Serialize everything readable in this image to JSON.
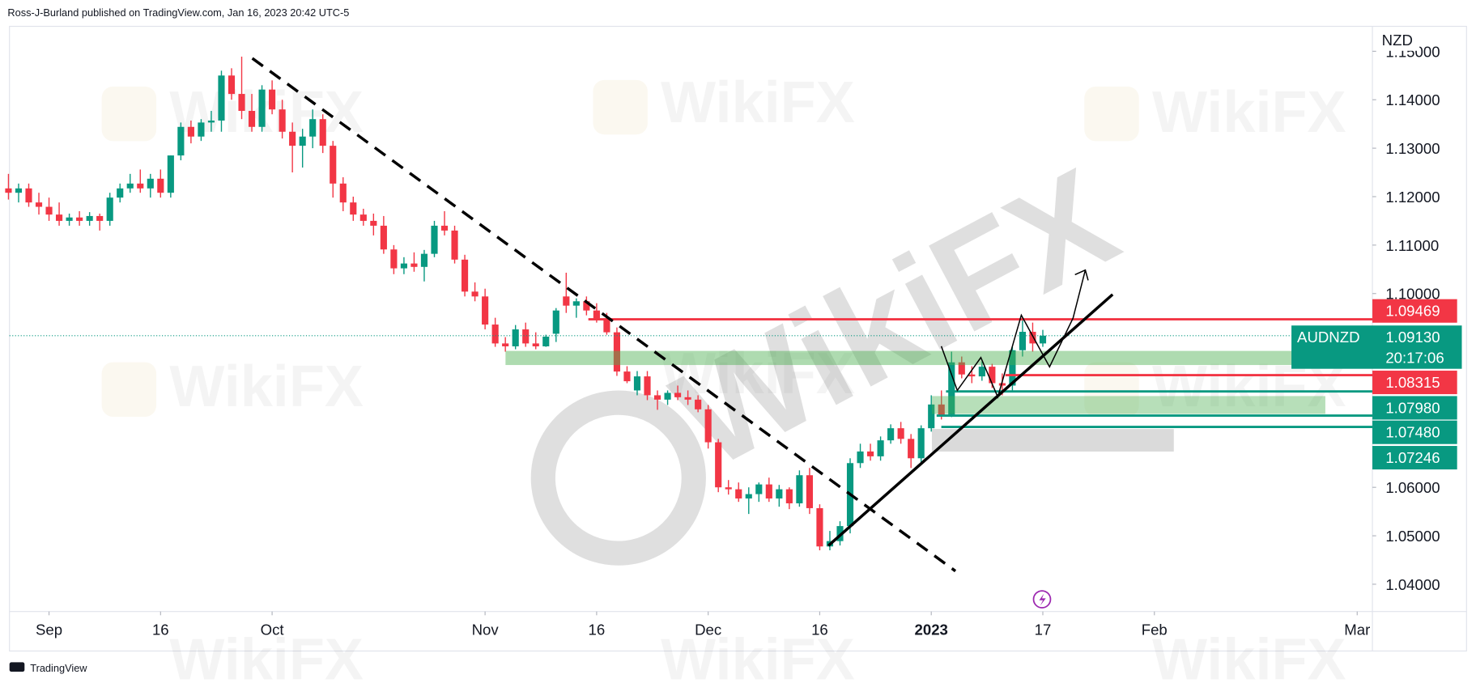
{
  "chart_data": {
    "type": "candlestick",
    "published": "Ross-J-Burland published on TradingView.com, Jan 16, 2023 20:42 UTC-5",
    "branding": "TradingView",
    "watermark": "WikiFX",
    "currency": "NZD",
    "symbol": "AUDNZD",
    "last_price": {
      "value": 1.0913,
      "label": "1.09130"
    },
    "countdown": "20:17:06",
    "up_color": "#089981",
    "down_color": "#f23645",
    "xlim": [
      0.1,
      134.5
    ],
    "ylim": [
      1.03437,
      1.15515
    ],
    "xticks": [
      {
        "value": 4,
        "label": "Sep"
      },
      {
        "value": 15,
        "label": "16"
      },
      {
        "value": 26,
        "label": "Oct"
      },
      {
        "value": 47,
        "label": "Nov"
      },
      {
        "value": 58,
        "label": "16"
      },
      {
        "value": 69,
        "label": "Dec"
      },
      {
        "value": 80,
        "label": "16"
      },
      {
        "value": 91,
        "label": "2023"
      },
      {
        "value": 102,
        "label": "17"
      },
      {
        "value": 113,
        "label": "Feb"
      },
      {
        "value": 133,
        "label": "Mar"
      }
    ],
    "yticks": [
      {
        "value": 1.04,
        "label": "1.04000"
      },
      {
        "value": 1.05,
        "label": "1.05000"
      },
      {
        "value": 1.06,
        "label": "1.06000"
      },
      {
        "value": 1.1,
        "label": "1.10000"
      },
      {
        "value": 1.11,
        "label": "1.11000"
      },
      {
        "value": 1.12,
        "label": "1.12000"
      },
      {
        "value": 1.13,
        "label": "1.13000"
      },
      {
        "value": 1.14,
        "label": "1.14000"
      },
      {
        "value": 1.15,
        "label": "1.15000"
      }
    ],
    "levels": [
      {
        "value": 1.09469,
        "label": "1.09469",
        "color": "#f23645"
      },
      {
        "value": 1.08315,
        "label": "1.08315",
        "color": "#f23645"
      },
      {
        "value": 1.0798,
        "label": "1.07980",
        "color": "#089981"
      },
      {
        "value": 1.0748,
        "label": "1.07480",
        "color": "#089981"
      },
      {
        "value": 1.07246,
        "label": "1.07246",
        "color": "#089981"
      }
    ],
    "open": [
      1.1217,
      1.1208,
      1.1217,
      1.1188,
      1.1179,
      1.1163,
      1.115,
      1.1157,
      1.115,
      1.116,
      1.115,
      1.1198,
      1.1217,
      1.1227,
      1.1217,
      1.1237,
      1.1208,
      1.1285,
      1.1344,
      1.1324,
      1.1353,
      1.1357,
      1.145,
      1.1412,
      1.1377,
      1.1344,
      1.1421,
      1.138,
      1.1334,
      1.1305,
      1.1324,
      1.136,
      1.1305,
      1.1227,
      1.1188,
      1.1163,
      1.115,
      1.114,
      1.1091,
      1.1052,
      1.1062,
      1.1055,
      1.1082,
      1.114,
      1.113,
      1.107,
      1.1004,
      1.0994,
      1.0936,
      1.0897,
      1.0891,
      1.0926,
      1.0897,
      1.0891,
      1.0917,
      1.0994,
      1.0975,
      1.0984,
      1.0965,
      1.0946,
      1.092,
      1.0839,
      1.08,
      1.0829,
      1.079,
      1.0781,
      1.0795,
      1.0786,
      1.0781,
      1.0761,
      1.0693,
      1.06,
      1.0596,
      1.0577,
      1.0586,
      1.0606,
      1.0577,
      1.0596,
      1.0567,
      1.0625,
      1.0557,
      1.0478,
      1.0489,
      1.052,
      1.065,
      1.0674,
      1.0664,
      1.0697,
      1.0722,
      1.07,
      1.066,
      1.0722,
      1.0771,
      1.075,
      1.0858,
      1.0833,
      1.0829,
      1.0849,
      1.0815,
      1.081,
      1.0883,
      1.0921,
      1.0897
    ],
    "high": [
      1.1247,
      1.1227,
      1.1227,
      1.1208,
      1.1198,
      1.1188,
      1.1165,
      1.117,
      1.1168,
      1.1165,
      1.1208,
      1.1227,
      1.1247,
      1.1256,
      1.1247,
      1.1256,
      1.1285,
      1.1353,
      1.1357,
      1.136,
      1.1377,
      1.146,
      1.1465,
      1.1489,
      1.1412,
      1.143,
      1.144,
      1.14,
      1.1353,
      1.134,
      1.138,
      1.137,
      1.1315,
      1.124,
      1.12,
      1.1175,
      1.1165,
      1.116,
      1.11,
      1.1075,
      1.1085,
      1.109,
      1.115,
      1.117,
      1.114,
      1.108,
      1.1023,
      1.101,
      1.095,
      1.091,
      1.0935,
      1.094,
      1.092,
      1.0915,
      1.097,
      1.1043,
      1.099,
      1.0994,
      1.098,
      1.096,
      1.093,
      1.085,
      1.084,
      1.084,
      1.08,
      1.08,
      1.081,
      1.08,
      1.079,
      1.077,
      1.07,
      1.0615,
      1.061,
      1.06,
      1.061,
      1.062,
      1.0605,
      1.06,
      1.0635,
      1.064,
      1.0565,
      1.051,
      1.053,
      1.066,
      1.069,
      1.069,
      1.0705,
      1.073,
      1.0735,
      1.071,
      1.0728,
      1.079,
      1.08,
      1.088,
      1.087,
      1.085,
      1.086,
      1.0855,
      1.0835,
      1.089,
      1.095,
      1.094,
      1.0925
    ],
    "low": [
      1.1194,
      1.1188,
      1.1179,
      1.1163,
      1.115,
      1.114,
      1.114,
      1.114,
      1.114,
      1.113,
      1.114,
      1.1188,
      1.1208,
      1.1208,
      1.1198,
      1.1198,
      1.1198,
      1.1275,
      1.131,
      1.1315,
      1.1334,
      1.1334,
      1.14,
      1.136,
      1.1334,
      1.1334,
      1.137,
      1.132,
      1.125,
      1.126,
      1.13,
      1.129,
      1.1198,
      1.117,
      1.115,
      1.114,
      1.112,
      1.1082,
      1.104,
      1.104,
      1.1045,
      1.1025,
      1.1075,
      1.112,
      1.1062,
      1.0994,
      1.0984,
      1.0926,
      1.089,
      1.088,
      1.0885,
      1.089,
      1.0885,
      1.089,
      1.09,
      1.096,
      1.095,
      1.0955,
      1.094,
      1.0915,
      1.083,
      1.0815,
      1.079,
      1.078,
      1.076,
      1.077,
      1.078,
      1.077,
      1.0755,
      1.068,
      1.059,
      1.0585,
      1.057,
      1.0545,
      1.057,
      1.057,
      1.056,
      1.0555,
      1.056,
      1.0545,
      1.047,
      1.047,
      1.048,
      1.0505,
      1.064,
      1.0655,
      1.0655,
      1.069,
      1.069,
      1.064,
      1.065,
      1.0715,
      1.074,
      1.0745,
      1.0825,
      1.0815,
      1.082,
      1.0805,
      1.079,
      1.08,
      1.087,
      1.088,
      1.089
    ],
    "close": [
      1.1208,
      1.1217,
      1.1188,
      1.1179,
      1.1163,
      1.115,
      1.1157,
      1.115,
      1.116,
      1.115,
      1.1198,
      1.1217,
      1.1227,
      1.1217,
      1.1237,
      1.1208,
      1.1285,
      1.1344,
      1.1324,
      1.1353,
      1.1357,
      1.145,
      1.1412,
      1.1377,
      1.1344,
      1.1421,
      1.138,
      1.1334,
      1.1305,
      1.1324,
      1.136,
      1.1305,
      1.1227,
      1.1188,
      1.1163,
      1.115,
      1.114,
      1.1091,
      1.1052,
      1.1062,
      1.1055,
      1.1082,
      1.114,
      1.113,
      1.107,
      1.1004,
      1.0994,
      1.0936,
      1.0897,
      1.0891,
      1.0926,
      1.0897,
      1.0891,
      1.0911,
      1.0965,
      1.0975,
      1.0984,
      1.0965,
      1.0946,
      1.092,
      1.0839,
      1.0819,
      1.0829,
      1.079,
      1.0781,
      1.0795,
      1.0786,
      1.0781,
      1.0761,
      1.0693,
      1.06,
      1.0596,
      1.0577,
      1.0586,
      1.0606,
      1.0577,
      1.0596,
      1.0567,
      1.0625,
      1.0557,
      1.0478,
      1.0489,
      1.052,
      1.065,
      1.0674,
      1.0664,
      1.0697,
      1.0722,
      1.07,
      1.066,
      1.0722,
      1.0771,
      1.075,
      1.0858,
      1.0833,
      1.0829,
      1.0849,
      1.0815,
      1.081,
      1.0883,
      1.0921,
      1.0897,
      1.0913
    ]
  }
}
